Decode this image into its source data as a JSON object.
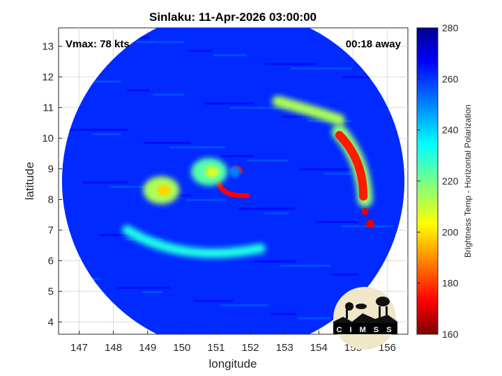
{
  "chart_data": {
    "type": "heatmap",
    "title": "Sinlaku: 11-Apr-2026 03:00:00",
    "annotation_left": "Vmax: 78 kts",
    "annotation_right": "00:18 away",
    "xlabel": "longitude",
    "ylabel": "latitude",
    "xlim": [
      146.4,
      156.6
    ],
    "ylim": [
      3.6,
      13.6
    ],
    "xticks": [
      147,
      148,
      149,
      150,
      151,
      152,
      153,
      154,
      155,
      156
    ],
    "yticks": [
      4,
      5,
      6,
      7,
      8,
      9,
      10,
      11,
      12,
      13
    ],
    "grid": true,
    "colorbar": {
      "label": "Brightness Temp - Horizontal Polarization",
      "min": 160,
      "max": 280,
      "ticks": [
        160,
        180,
        200,
        220,
        240,
        260,
        280
      ],
      "colormap": "jet"
    },
    "data_region": {
      "shape": "disc",
      "center": [
        151.5,
        8.6
      ],
      "radius_deg": 5.0
    },
    "background_tb": 260,
    "features": [
      {
        "name": "eyewall arc",
        "lon": 151.3,
        "lat": 8.4,
        "tb": 175
      },
      {
        "name": "eye",
        "lon": 151.55,
        "lat": 8.9,
        "tb": 250
      },
      {
        "name": "inner band",
        "lon": 150.8,
        "lat": 8.9,
        "tb": 225
      },
      {
        "name": "western band",
        "lon": 149.4,
        "lat": 8.3,
        "tb": 215
      },
      {
        "name": "outer rainband",
        "lon": 155.0,
        "lat": 9.2,
        "tb": 178
      },
      {
        "name": "rainband tip",
        "lon": 155.5,
        "lat": 7.2,
        "tb": 172
      },
      {
        "name": "northern arc",
        "lon": 154.0,
        "lat": 10.6,
        "tb": 215
      },
      {
        "name": "southern spiral",
        "lon": 150.5,
        "lat": 6.3,
        "tb": 232
      }
    ],
    "logo_text": "CIMSS"
  }
}
